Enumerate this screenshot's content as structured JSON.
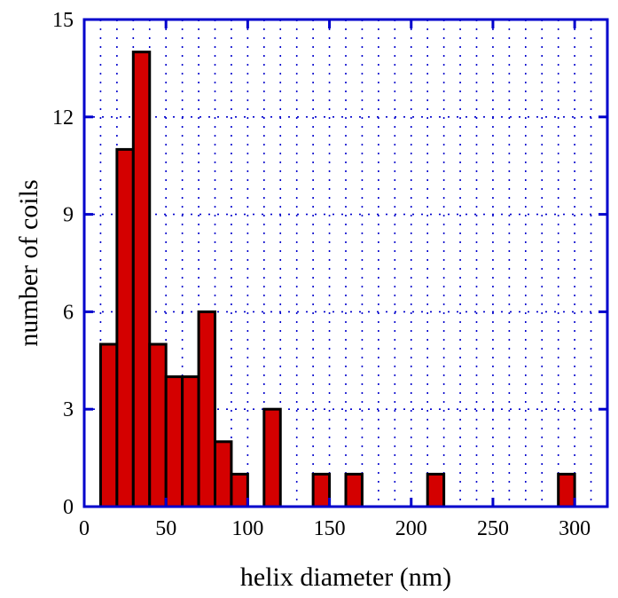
{
  "chart_data": {
    "type": "bar",
    "xlabel": "helix diameter (nm)",
    "ylabel": "number of coils",
    "xlim": [
      0,
      320
    ],
    "ylim": [
      0,
      15
    ],
    "x_ticks": [
      0,
      50,
      100,
      150,
      200,
      250,
      300
    ],
    "y_ticks": [
      0,
      3,
      6,
      9,
      12,
      15
    ],
    "bin_width": 10,
    "grid": true,
    "bar_color": "#d40000",
    "bins": [
      {
        "x_start": 10,
        "x_end": 20,
        "count": 5
      },
      {
        "x_start": 20,
        "x_end": 30,
        "count": 11
      },
      {
        "x_start": 30,
        "x_end": 40,
        "count": 14
      },
      {
        "x_start": 40,
        "x_end": 50,
        "count": 5
      },
      {
        "x_start": 50,
        "x_end": 60,
        "count": 4
      },
      {
        "x_start": 60,
        "x_end": 70,
        "count": 4
      },
      {
        "x_start": 70,
        "x_end": 80,
        "count": 6
      },
      {
        "x_start": 80,
        "x_end": 90,
        "count": 2
      },
      {
        "x_start": 90,
        "x_end": 100,
        "count": 1
      },
      {
        "x_start": 110,
        "x_end": 120,
        "count": 3
      },
      {
        "x_start": 140,
        "x_end": 150,
        "count": 1
      },
      {
        "x_start": 160,
        "x_end": 170,
        "count": 1
      },
      {
        "x_start": 210,
        "x_end": 220,
        "count": 1
      },
      {
        "x_start": 290,
        "x_end": 300,
        "count": 1
      }
    ]
  }
}
